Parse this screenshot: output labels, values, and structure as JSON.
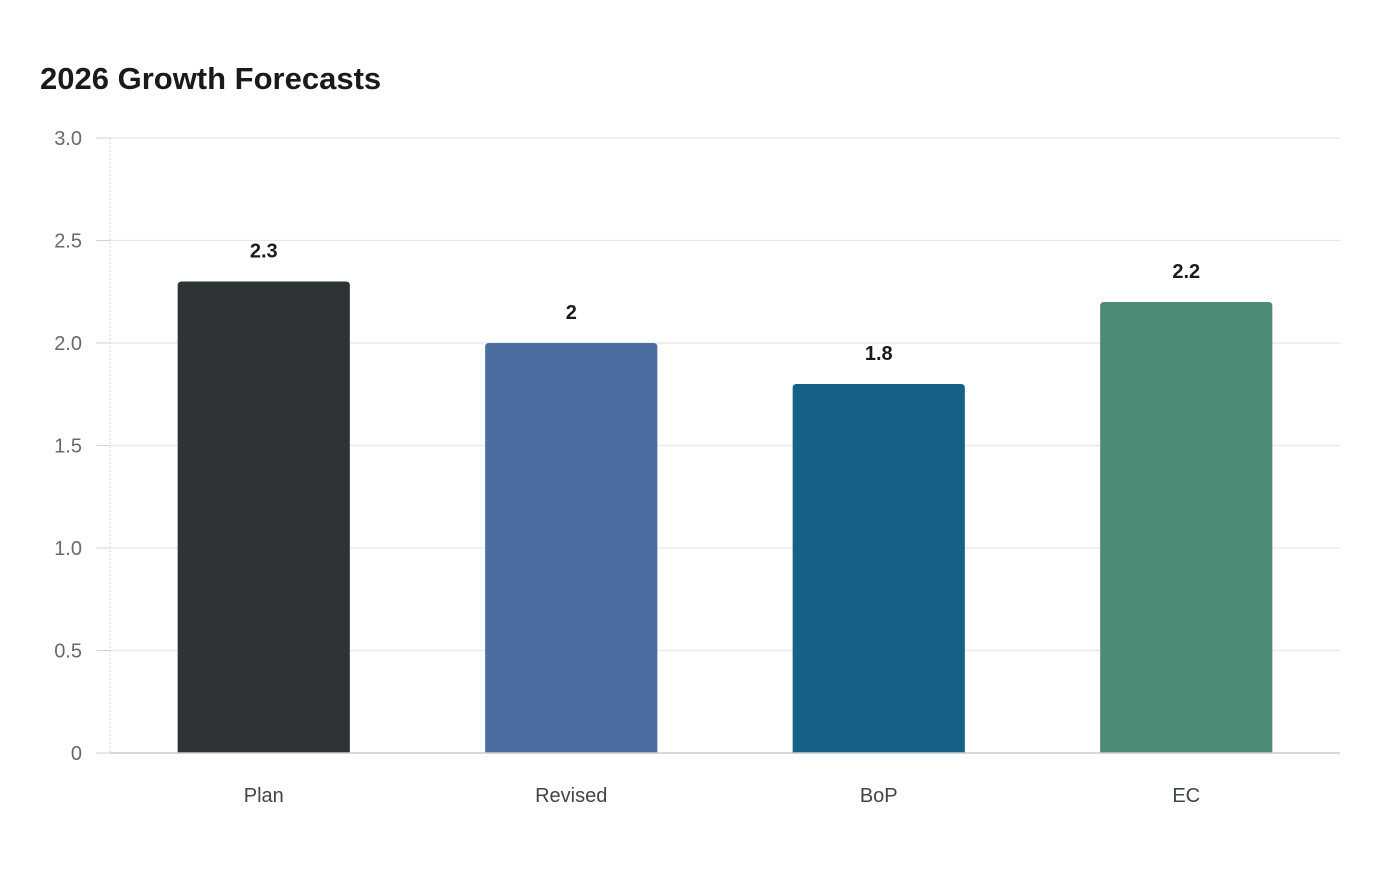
{
  "chart_data": {
    "type": "bar",
    "title": "2026 Growth Forecasts",
    "categories": [
      "Plan",
      "Revised",
      "BoP",
      "EC"
    ],
    "values": [
      2.3,
      2,
      1.8,
      2.2
    ],
    "data_labels": [
      "2.3",
      "2",
      "1.8",
      "2.2"
    ],
    "colors": [
      "#2e3436",
      "#4a6da2",
      "#176087",
      "#4e8c79"
    ],
    "xlabel": "",
    "ylabel": "",
    "ylim": [
      0,
      3
    ],
    "y_ticks": [
      0,
      0.5,
      1.0,
      1.5,
      2.0,
      2.5,
      3.0
    ],
    "y_tick_labels": [
      "0",
      "0.5",
      "1.0",
      "1.5",
      "2.0",
      "2.5",
      "3.0"
    ],
    "grid": true,
    "legend": "none"
  }
}
